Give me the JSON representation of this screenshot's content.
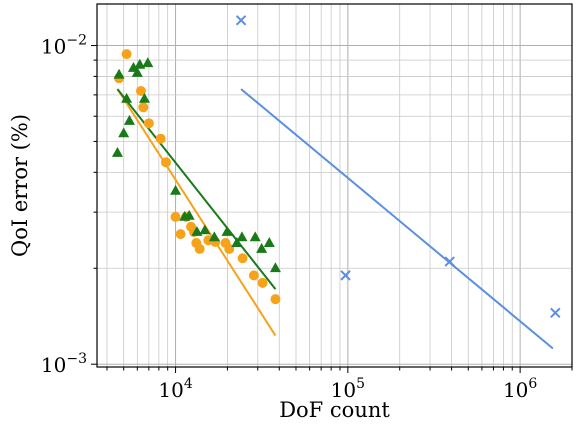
{
  "chart_data": {
    "type": "scatter",
    "title": "",
    "xlabel": "DoF count",
    "ylabel": "QoI error (%)",
    "xscale": "log",
    "yscale": "log",
    "xlim": [
      3500,
      2000000
    ],
    "ylim": [
      0.00098,
      0.0135
    ],
    "grid": "major and minor",
    "x_ticks": [
      {
        "value": 10000,
        "base": "10",
        "exp": "4"
      },
      {
        "value": 100000,
        "base": "10",
        "exp": "5"
      },
      {
        "value": 1000000,
        "base": "10",
        "exp": "6"
      }
    ],
    "y_ticks": [
      {
        "value": 0.001,
        "base": "10",
        "exp": "−3"
      },
      {
        "value": 0.01,
        "base": "10",
        "exp": "−2"
      }
    ],
    "series": [
      {
        "marker": "circle",
        "color": "#f5a31a",
        "points": [
          [
            4700,
            0.0079
          ],
          [
            5200,
            0.0094
          ],
          [
            6300,
            0.0072
          ],
          [
            6500,
            0.0064
          ],
          [
            7000,
            0.0057
          ],
          [
            8200,
            0.0051
          ],
          [
            8800,
            0.0043
          ],
          [
            10000,
            0.0029
          ],
          [
            10700,
            0.00256
          ],
          [
            11500,
            0.0029
          ],
          [
            12300,
            0.0027
          ],
          [
            12800,
            0.0026
          ],
          [
            13200,
            0.0024
          ],
          [
            13800,
            0.0023
          ],
          [
            15500,
            0.00245
          ],
          [
            17000,
            0.00242
          ],
          [
            19500,
            0.0024
          ],
          [
            20500,
            0.0023
          ],
          [
            24500,
            0.00215
          ],
          [
            28500,
            0.0019
          ],
          [
            32000,
            0.0018
          ],
          [
            38000,
            0.0016
          ]
        ],
        "fit": [
          [
            4600,
            0.0073
          ],
          [
            38000,
            0.00123
          ]
        ]
      },
      {
        "marker": "triangle",
        "color": "#1a7a1a",
        "points": [
          [
            4600,
            0.0046
          ],
          [
            4700,
            0.0081
          ],
          [
            5000,
            0.0053
          ],
          [
            5200,
            0.0068
          ],
          [
            5400,
            0.0058
          ],
          [
            5700,
            0.0085
          ],
          [
            6000,
            0.0082
          ],
          [
            6200,
            0.0087
          ],
          [
            6600,
            0.0068
          ],
          [
            6900,
            0.0088
          ],
          [
            10000,
            0.0035
          ],
          [
            11300,
            0.0029
          ],
          [
            12000,
            0.00292
          ],
          [
            13300,
            0.0026
          ],
          [
            14800,
            0.00263
          ],
          [
            16800,
            0.0025
          ],
          [
            19900,
            0.0026
          ],
          [
            22700,
            0.0024
          ],
          [
            24300,
            0.0025
          ],
          [
            29000,
            0.0025
          ],
          [
            31600,
            0.0023
          ],
          [
            35000,
            0.0024
          ],
          [
            38000,
            0.002
          ]
        ],
        "fit": [
          [
            4600,
            0.0073
          ],
          [
            38000,
            0.00172
          ]
        ]
      },
      {
        "marker": "x",
        "color": "#5b8fe0",
        "points": [
          [
            24000,
            0.012
          ],
          [
            97000,
            0.0019
          ],
          [
            390000,
            0.0021
          ],
          [
            1600000,
            0.00145
          ]
        ],
        "fit": [
          [
            24000,
            0.0073
          ],
          [
            1550000,
            0.00112
          ]
        ]
      }
    ]
  }
}
